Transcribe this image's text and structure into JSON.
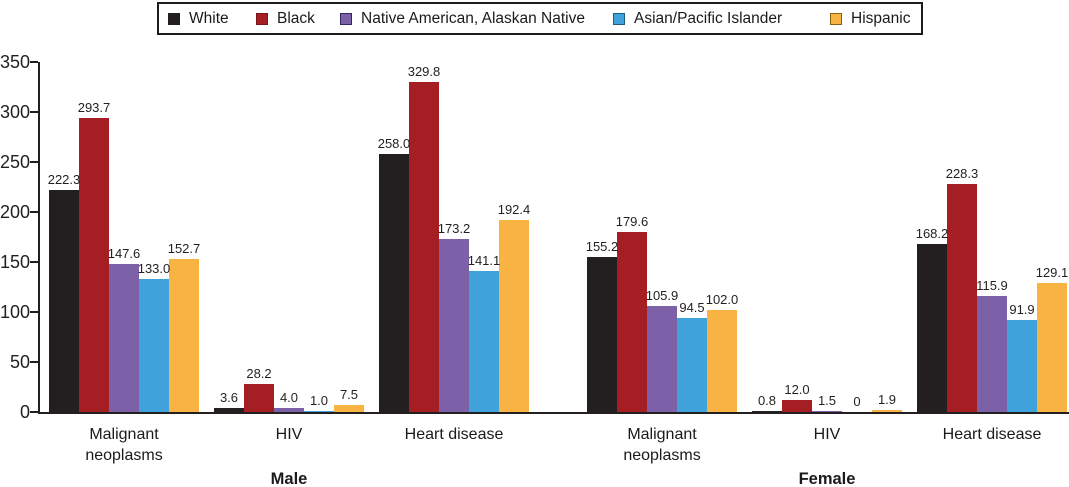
{
  "legend": {
    "items": [
      {
        "label": "White",
        "color": "#231f20",
        "border": "#231f20"
      },
      {
        "label": "Black",
        "color": "#a41e24",
        "border": "#7c1418"
      },
      {
        "label": "Native American, Alaskan Native",
        "color": "#7c61a9",
        "border": "#2f2a60"
      },
      {
        "label": "Asian/Pacific Islander",
        "color": "#3fa2db",
        "border": "#1d5e86"
      },
      {
        "label": "Hispanic",
        "color": "#f9b342",
        "border": "#8a6011"
      }
    ]
  },
  "chart_data": {
    "type": "bar",
    "series": [
      "White",
      "Black",
      "Native American, Alaskan Native",
      "Asian/Pacific Islander",
      "Hispanic"
    ],
    "series_colors": [
      "#231f20",
      "#a41e24",
      "#7c61a9",
      "#3fa2db",
      "#f9b342"
    ],
    "sections": [
      "Male",
      "Female"
    ],
    "groups": [
      {
        "section": "Male",
        "category": "Malignant neoplasms",
        "values": [
          222.3,
          293.7,
          147.6,
          133.0,
          152.7
        ],
        "labels": [
          "222.3",
          "293.7",
          "147.6",
          "133.0",
          "152.7"
        ]
      },
      {
        "section": "Male",
        "category": "HIV",
        "values": [
          3.6,
          28.2,
          4.0,
          1.0,
          7.5
        ],
        "labels": [
          "3.6",
          "28.2",
          "4.0",
          "1.0",
          "7.5"
        ]
      },
      {
        "section": "Male",
        "category": "Heart disease",
        "values": [
          258.0,
          329.8,
          173.2,
          141.1,
          192.4
        ],
        "labels": [
          "258.0",
          "329.8",
          "173.2",
          "141.1",
          "192.4"
        ]
      },
      {
        "section": "Female",
        "category": "Malignant neoplasms",
        "values": [
          155.2,
          179.6,
          105.9,
          94.5,
          102.0
        ],
        "labels": [
          "155.2",
          "179.6",
          "105.9",
          "94.5",
          "102.0"
        ]
      },
      {
        "section": "Female",
        "category": "HIV",
        "values": [
          0.8,
          12.0,
          1.5,
          0,
          1.9
        ],
        "labels": [
          "0.8",
          "12.0",
          "1.5",
          "0",
          "1.9"
        ]
      },
      {
        "section": "Female",
        "category": "Heart disease",
        "values": [
          168.2,
          228.3,
          115.9,
          91.9,
          129.1
        ],
        "labels": [
          "168.2",
          "228.3",
          "115.9",
          "91.9",
          "129.1"
        ]
      }
    ],
    "title": "",
    "xlabel": "",
    "ylabel": "",
    "ylim": [
      0,
      350
    ],
    "ytick_step": 50,
    "grid": false,
    "legend_position": "top"
  }
}
